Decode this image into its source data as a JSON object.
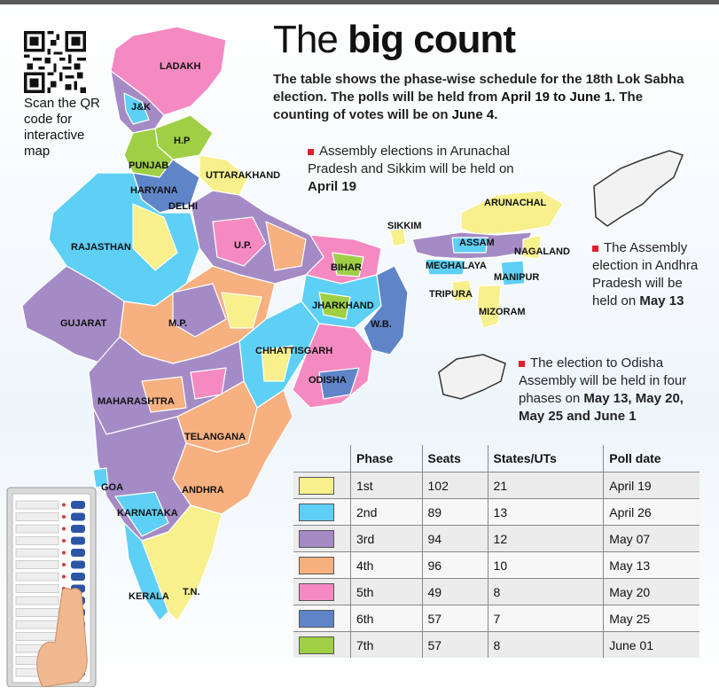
{
  "title": {
    "light": "The",
    "bold": "big count"
  },
  "intro": {
    "text1": "The table shows the phase-wise schedule for the 18th Lok Sabha election. The polls will be held from ",
    "date_from": "April 19 to June 1",
    "text2": ". The counting of votes will be on ",
    "count_date": "June 4",
    "text3": "."
  },
  "qr_caption": "Scan the QR code for interactive map",
  "notes": {
    "arunachal_sikkim": {
      "text": "Assembly elections in Arunachal Pradesh and Sikkim will be held on ",
      "date": "April 19"
    },
    "andhra": {
      "text": "The Assembly election in Andhra Pradesh will be held on ",
      "date": "May 13"
    },
    "odisha": {
      "text": "The election to Odisha Assembly will be held in four phases on ",
      "date": "May 13, May 20, May 25 and June 1"
    }
  },
  "map_labels": {
    "ladakh": "LADAKH",
    "jk": "J&K",
    "hp": "H.P",
    "punjab": "PUNJAB",
    "uttarakhand": "UTTARAKHAND",
    "haryana": "HARYANA",
    "delhi": "DELHI",
    "rajasthan": "RAJASTHAN",
    "up": "U.P.",
    "bihar": "BIHAR",
    "sikkim": "SIKKIM",
    "arunachal": "ARUNACHAL",
    "assam": "ASSAM",
    "nagaland": "NAGALAND",
    "meghalaya": "MEGHALAYA",
    "manipur": "MANIPUR",
    "tripura": "TRIPURA",
    "mizoram": "MIZORAM",
    "jharkhand": "JHARKHAND",
    "wb": "W.B.",
    "gujarat": "GUJARAT",
    "mp": "M.P.",
    "chhattisgarh": "CHHATTISGARH",
    "odisha": "ODISHA",
    "maharashtra": "MAHARASHTRA",
    "telangana": "TELANGANA",
    "goa": "GOA",
    "andhra": "ANDHRA",
    "karnataka": "KARNATAKA",
    "kerala": "KERALA",
    "tn": "T.N."
  },
  "table": {
    "headers": {
      "phase": "Phase",
      "seats": "Seats",
      "states": "States/UTs",
      "poll_date": "Poll date"
    },
    "rows": [
      {
        "phase": "1st",
        "seats": "102",
        "states": "21",
        "date": "April 19",
        "color": "#f7f08c"
      },
      {
        "phase": "2nd",
        "seats": "89",
        "states": "13",
        "date": "April 26",
        "color": "#5ecff5"
      },
      {
        "phase": "3rd",
        "seats": "94",
        "states": "12",
        "date": "May 07",
        "color": "#a48bc6"
      },
      {
        "phase": "4th",
        "seats": "96",
        "states": "10",
        "date": "May 13",
        "color": "#f7b080"
      },
      {
        "phase": "5th",
        "seats": "49",
        "states": "8",
        "date": "May 20",
        "color": "#f58ac2"
      },
      {
        "phase": "6th",
        "seats": "57",
        "states": "7",
        "date": "May 25",
        "color": "#5f85c8"
      },
      {
        "phase": "7th",
        "seats": "57",
        "states": "8",
        "date": "June 01",
        "color": "#9fcf45"
      }
    ]
  },
  "colors": {
    "phase1": "#f7f08c",
    "phase2": "#5ecff5",
    "phase3": "#a48bc6",
    "phase4": "#f7b080",
    "phase5": "#f58ac2",
    "phase6": "#5f85c8",
    "phase7": "#9fcf45",
    "note_marker": "#e0202a"
  }
}
